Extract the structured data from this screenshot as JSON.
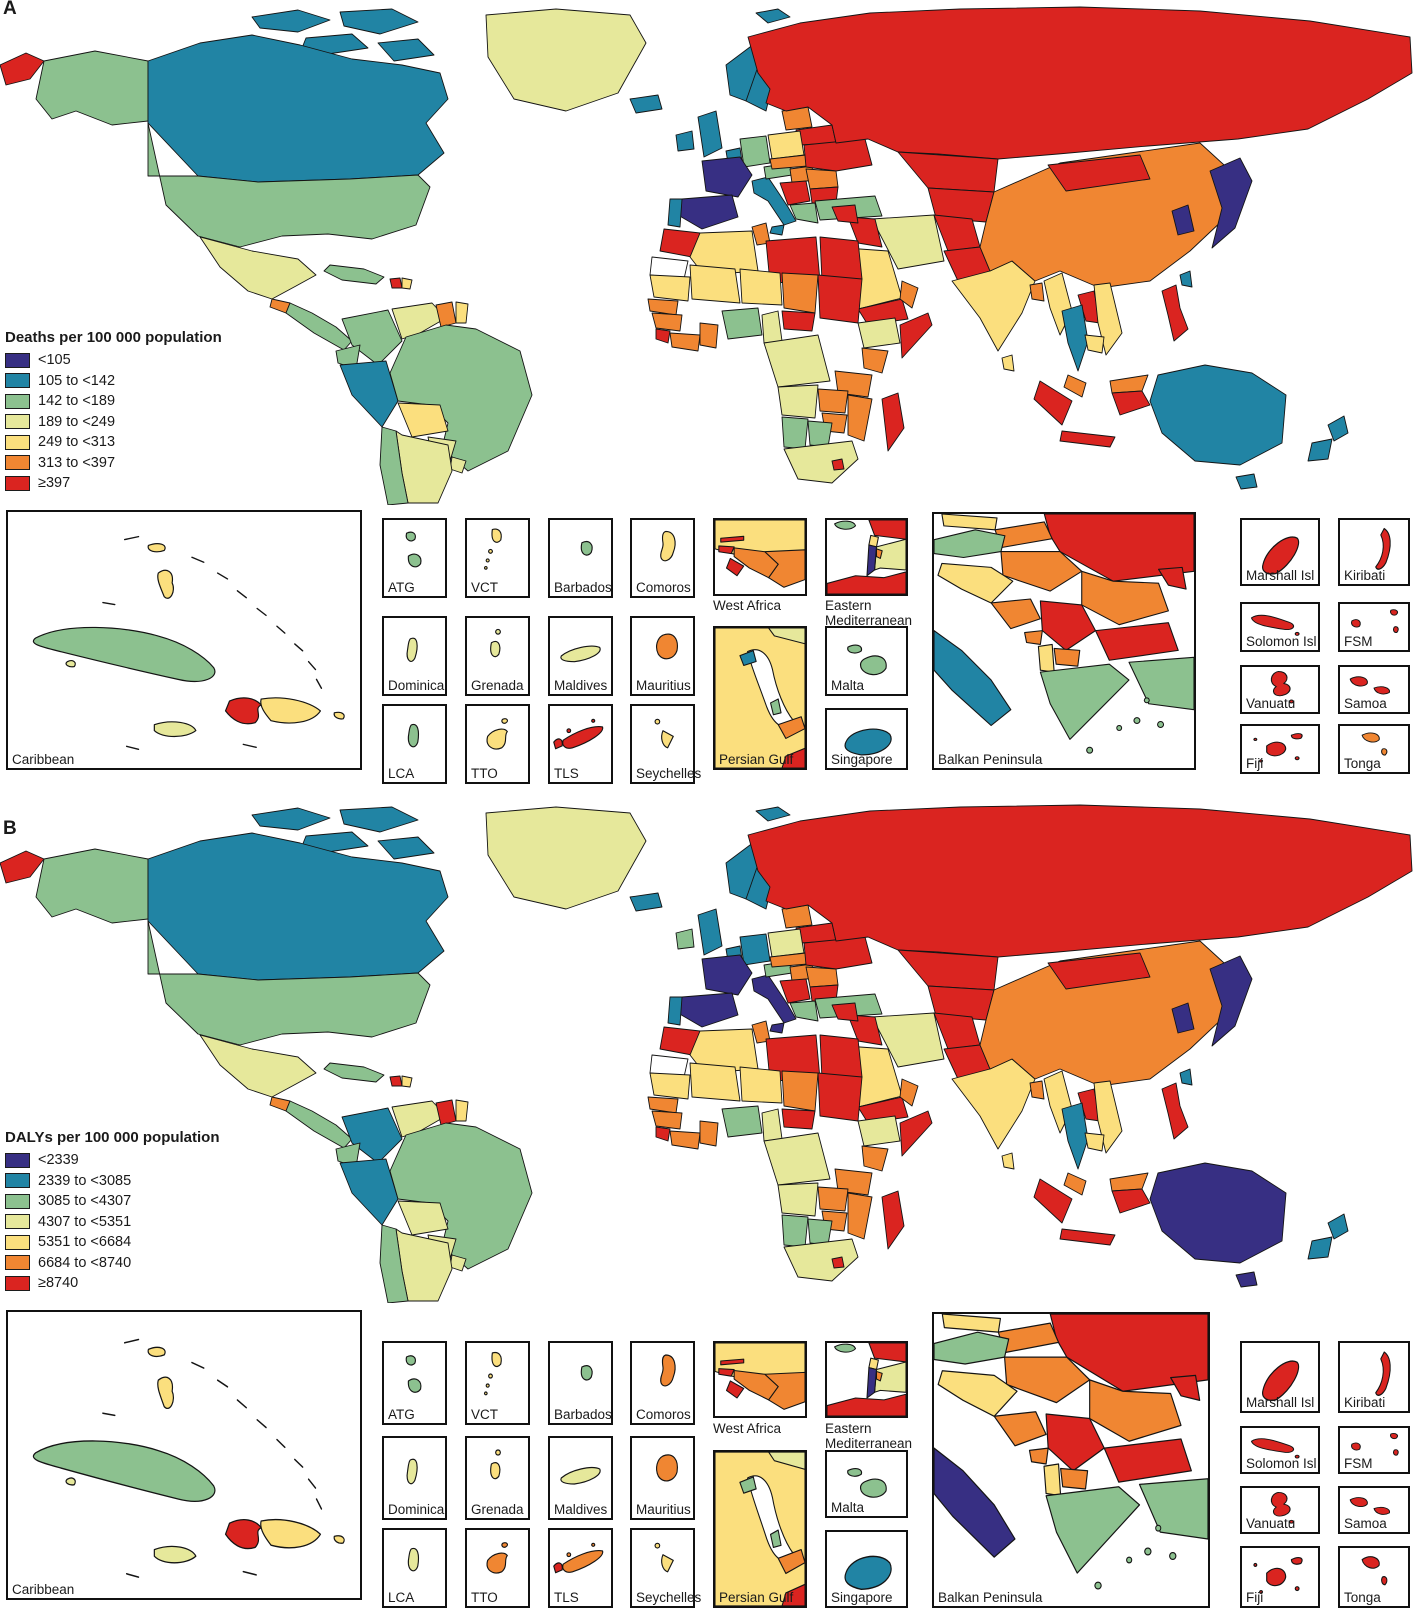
{
  "colors": {
    "bins": [
      "#372F83",
      "#2184A4",
      "#8CC18F",
      "#E6E89B",
      "#FBDF7E",
      "#F08632",
      "#DA2420"
    ],
    "outline": "#141414",
    "sea": "#FFFFFF",
    "no_data": "#FFFFFF",
    "text": "#1A1A1A"
  },
  "panels": {
    "a": {
      "label": "A",
      "legend_title": "Deaths per 100 000 population",
      "legend_items": [
        "<105",
        "105 to <142",
        "142 to <189",
        "189 to <249",
        "249 to <313",
        "313 to <397",
        "≥397"
      ],
      "region_bins": {
        "chukotka": 6,
        "svalbard": 1,
        "alaska": 2,
        "canada_arctic1": 1,
        "canada_arctic2": 1,
        "canada_arctic3": 1,
        "canada_arctic4": 1,
        "canada": 1,
        "greenland": 3,
        "usa": 2,
        "mexico": 3,
        "guatemala": 5,
        "camerica": 2,
        "cuba_m": 2,
        "haiti_m": 6,
        "dominican_m": 4,
        "colombia": 2,
        "venezuela": 3,
        "guyana": 5,
        "suriname": 4,
        "ecuador": 2,
        "peru": 1,
        "brazil": 2,
        "bolivia": 4,
        "paraguay": 3,
        "chile": 2,
        "argentina": 3,
        "uruguay": 3,
        "iceland": 1,
        "ireland": 1,
        "uk": 1,
        "norway": 1,
        "sweden": 1,
        "finland": 1,
        "baltics": 5,
        "belarus": 6,
        "poland": 4,
        "germany": 2,
        "benelux": 1,
        "france": 0,
        "spain": 0,
        "portugal": 1,
        "italy": 1,
        "sicily": 1,
        "austria": 2,
        "czech_slovakia": 5,
        "hungary": 5,
        "ukraine": 6,
        "romania": 5,
        "serbia": 6,
        "bulgaria": 6,
        "greece": 2,
        "turkey": 2,
        "russia": 6,
        "kazakhstan": 6,
        "central_asia": 6,
        "iran": 3,
        "iraq": 6,
        "syria": 6,
        "saudi": 4,
        "yemen": 6,
        "oman": 5,
        "afghanistan": 6,
        "pakistan": 6,
        "india": 4,
        "sri_lanka": 4,
        "bangladesh": 5,
        "myanmar": 4,
        "china": 5,
        "mongolia": 6,
        "korea": 0,
        "japan": 0,
        "taiwan": 1,
        "laos": 6,
        "thailand": 1,
        "vietnam": 4,
        "cambodia": 4,
        "malaysia": 5,
        "borneo_malaysia": 5,
        "borneo_indonesia": 6,
        "sumatra": 6,
        "java": 6,
        "sulawesi": 6,
        "indonesia_east": 6,
        "philippines": 6,
        "png": 6,
        "australia": 1,
        "tasmania": 1,
        "nz_north": 1,
        "nz_south": 1,
        "morocco": 6,
        "western_sahara": -1,
        "algeria": 4,
        "tunisia": 5,
        "libya": 6,
        "egypt": 6,
        "mauritania": 4,
        "mali": 4,
        "niger": 4,
        "chad": 5,
        "sudan": 6,
        "ethiopia": 3,
        "somalia": 6,
        "senegal": 5,
        "guinea_region": 5,
        "sierra_leone": 6,
        "cote_divoire": 5,
        "ghana": 5,
        "nigeria": 2,
        "cameroon": 3,
        "car": 6,
        "drc": 3,
        "kenya": 5,
        "tanzania": 5,
        "angola": 3,
        "zambia": 5,
        "mozambique": 5,
        "zimbabwe": 5,
        "namibia": 2,
        "botswana": 2,
        "south_africa": 3,
        "lesotho": 6,
        "madagascar": 6
      },
      "insets": {
        "caribbean": {
          "label": "Caribbean",
          "bins": {
            "bahamas1": 4,
            "bahamas2": 4,
            "cuba": 2,
            "isle_of_youth": 3,
            "jamaica": 3,
            "haiti": 6,
            "dominican_republic": 4,
            "puerto_rico": 4
          }
        },
        "small_islands": [
          {
            "label": "ATG",
            "bin": 2
          },
          {
            "label": "VCT",
            "bin": 4
          },
          {
            "label": "Barbados",
            "bin": 2
          },
          {
            "label": "Comoros",
            "bin": 4
          },
          {
            "label": "Dominica",
            "bin": 3
          },
          {
            "label": "Grenada",
            "bin": 3
          },
          {
            "label": "Maldives",
            "bin": 3
          },
          {
            "label": "Mauritius",
            "bin": 5
          },
          {
            "label": "LCA",
            "bin": 2
          },
          {
            "label": "TTO",
            "bin": 4
          },
          {
            "label": "TLS",
            "bin": 6,
            "accent_bin": 6
          },
          {
            "label": "Seychelles",
            "bin": 4
          }
        ],
        "west_africa": {
          "label": "West Africa",
          "bins": {
            "base": 4,
            "east": 5,
            "guinea": 5,
            "gambia": 6,
            "guinea_bissau": 6,
            "sierra_leone": 6
          }
        },
        "eastern_mediterranean": {
          "label": "Eastern Mediterranean",
          "bins": {
            "cyprus": 2,
            "syria": 6,
            "lebanon": 4,
            "israel": 0,
            "palestine": 5,
            "jordan": 3,
            "egypt": 6
          }
        },
        "persian_gulf": {
          "label": "Persian Gulf",
          "bins": {
            "base": 4,
            "iran_edge": 3,
            "kuwait": 1,
            "qatar": 2,
            "uae": 5,
            "corner": 6
          }
        },
        "malta": {
          "label": "Malta",
          "bin": 2
        },
        "singapore": {
          "label": "Singapore",
          "bin": 1
        },
        "balkan": {
          "label": "Balkan Peninsula",
          "bins": {
            "czech": 4,
            "austria": 2,
            "slovakia": 5,
            "ukraine": 6,
            "hungary": 5,
            "croatia": 4,
            "romania": 5,
            "moldova": 6,
            "bosnia": 5,
            "serbia": 6,
            "bulgaria": 6,
            "montenegro": 5,
            "albania": 4,
            "macedonia": 5,
            "greece": 2,
            "turkey": 2,
            "italy": 1
          }
        },
        "pacific": [
          {
            "label": "Marshall Isl",
            "bin": 6
          },
          {
            "label": "Kiribati",
            "bin": 6
          },
          {
            "label": "Solomon Isl",
            "bin": 6
          },
          {
            "label": "FSM",
            "bin": 6
          },
          {
            "label": "Vanuatu",
            "bin": 6
          },
          {
            "label": "Samoa",
            "bin": 6
          },
          {
            "label": "Fiji",
            "bin": 6
          },
          {
            "label": "Tonga",
            "bin": 5
          }
        ]
      }
    },
    "b": {
      "label": "B",
      "legend_title": "DALYs per 100 000 population",
      "legend_items": [
        "<2339",
        "2339 to <3085",
        "3085 to <4307",
        "4307 to <5351",
        "5351 to <6684",
        "6684 to <8740",
        "≥8740"
      ],
      "region_overrides": {
        "colombia": 1,
        "guyana": 6,
        "bolivia": 3,
        "ireland": 2,
        "finland": 2,
        "poland": 3,
        "germany": 1,
        "italy": 0,
        "sicily": 0,
        "australia": 0,
        "tasmania": 0
      },
      "insets": {
        "caribbean": {
          "label": "Caribbean",
          "bins": {
            "bahamas1": 4,
            "bahamas2": 4,
            "cuba": 2,
            "isle_of_youth": 3,
            "jamaica": 3,
            "haiti": 6,
            "dominican_republic": 4,
            "puerto_rico": 4
          }
        },
        "small_islands": [
          {
            "label": "ATG",
            "bin": 2
          },
          {
            "label": "VCT",
            "bin": 4
          },
          {
            "label": "Barbados",
            "bin": 2
          },
          {
            "label": "Comoros",
            "bin": 5
          },
          {
            "label": "Dominica",
            "bin": 3
          },
          {
            "label": "Grenada",
            "bin": 4
          },
          {
            "label": "Maldives",
            "bin": 3
          },
          {
            "label": "Mauritius",
            "bin": 5
          },
          {
            "label": "LCA",
            "bin": 3
          },
          {
            "label": "TTO",
            "bin": 5
          },
          {
            "label": "TLS",
            "bin": 5,
            "accent_bin": 6
          },
          {
            "label": "Seychelles",
            "bin": 4
          }
        ],
        "west_africa": {
          "label": "West Africa",
          "bins": {
            "base": 4,
            "east": 5,
            "guinea": 5,
            "gambia": 6,
            "guinea_bissau": 6,
            "sierra_leone": 6
          }
        },
        "eastern_mediterranean": {
          "label": "Eastern Mediterranean",
          "bins": {
            "cyprus": 2,
            "syria": 6,
            "lebanon": 4,
            "israel": 0,
            "palestine": 5,
            "jordan": 3,
            "egypt": 6
          }
        },
        "persian_gulf": {
          "label": "Persian Gulf",
          "bins": {
            "base": 4,
            "iran_edge": 3,
            "kuwait": 2,
            "qatar": 2,
            "uae": 5,
            "corner": 6
          }
        },
        "malta": {
          "label": "Malta",
          "bin": 2
        },
        "singapore": {
          "label": "Singapore",
          "bin": 1
        },
        "balkan": {
          "label": "Balkan Peninsula",
          "bins": {
            "czech": 4,
            "austria": 2,
            "slovakia": 5,
            "ukraine": 6,
            "hungary": 5,
            "croatia": 4,
            "romania": 5,
            "moldova": 6,
            "bosnia": 5,
            "serbia": 6,
            "bulgaria": 6,
            "montenegro": 5,
            "albania": 4,
            "macedonia": 5,
            "greece": 2,
            "turkey": 2,
            "italy": 0
          }
        },
        "pacific": [
          {
            "label": "Marshall Isl",
            "bin": 6
          },
          {
            "label": "Kiribati",
            "bin": 6
          },
          {
            "label": "Solomon Isl",
            "bin": 6
          },
          {
            "label": "FSM",
            "bin": 6
          },
          {
            "label": "Vanuatu",
            "bin": 6
          },
          {
            "label": "Samoa",
            "bin": 6
          },
          {
            "label": "Fiji",
            "bin": 6
          },
          {
            "label": "Tonga",
            "bin": 6
          }
        ]
      }
    }
  }
}
